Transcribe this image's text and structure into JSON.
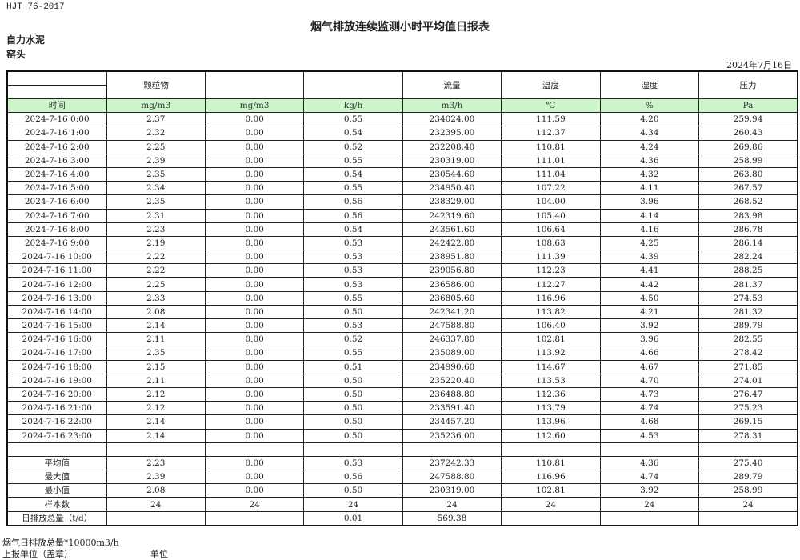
{
  "header": {
    "standard": "HJT  76-2017",
    "title": "烟气排放连续监测小时平均值日报表",
    "company": "自力水泥",
    "location": "窑头",
    "date": "2024年7月16日"
  },
  "table": {
    "group_headers": [
      "",
      "颗粒物",
      "",
      "",
      "流量",
      "温度",
      "湿度",
      "压力"
    ],
    "units": [
      "时间",
      "mg/m3",
      "mg/m3",
      "kg/h",
      "m3/h",
      "℃",
      "%",
      "Pa"
    ],
    "rows": [
      [
        "2024-7-16 0:00",
        "2.37",
        "0.00",
        "0.55",
        "234024.00",
        "111.59",
        "4.20",
        "259.94"
      ],
      [
        "2024-7-16 1:00",
        "2.32",
        "0.00",
        "0.54",
        "232395.00",
        "112.37",
        "4.34",
        "260.43"
      ],
      [
        "2024-7-16 2:00",
        "2.25",
        "0.00",
        "0.52",
        "232208.40",
        "110.81",
        "4.24",
        "269.86"
      ],
      [
        "2024-7-16 3:00",
        "2.39",
        "0.00",
        "0.55",
        "230319.00",
        "111.01",
        "4.36",
        "258.99"
      ],
      [
        "2024-7-16 4:00",
        "2.35",
        "0.00",
        "0.54",
        "230544.60",
        "111.04",
        "4.32",
        "263.80"
      ],
      [
        "2024-7-16 5:00",
        "2.34",
        "0.00",
        "0.55",
        "234950.40",
        "107.22",
        "4.11",
        "267.57"
      ],
      [
        "2024-7-16 6:00",
        "2.35",
        "0.00",
        "0.56",
        "238329.00",
        "104.00",
        "3.96",
        "268.52"
      ],
      [
        "2024-7-16 7:00",
        "2.31",
        "0.00",
        "0.56",
        "242319.60",
        "105.40",
        "4.14",
        "283.98"
      ],
      [
        "2024-7-16 8:00",
        "2.23",
        "0.00",
        "0.54",
        "243561.60",
        "106.64",
        "4.16",
        "286.78"
      ],
      [
        "2024-7-16 9:00",
        "2.19",
        "0.00",
        "0.53",
        "242422.80",
        "108.63",
        "4.25",
        "286.14"
      ],
      [
        "2024-7-16 10:00",
        "2.22",
        "0.00",
        "0.53",
        "238951.80",
        "111.39",
        "4.39",
        "282.24"
      ],
      [
        "2024-7-16 11:00",
        "2.22",
        "0.00",
        "0.53",
        "239056.80",
        "112.23",
        "4.41",
        "288.25"
      ],
      [
        "2024-7-16 12:00",
        "2.25",
        "0.00",
        "0.53",
        "236586.00",
        "112.27",
        "4.42",
        "281.37"
      ],
      [
        "2024-7-16 13:00",
        "2.33",
        "0.00",
        "0.55",
        "236805.60",
        "116.96",
        "4.50",
        "274.53"
      ],
      [
        "2024-7-16 14:00",
        "2.08",
        "0.00",
        "0.50",
        "242341.20",
        "113.82",
        "4.21",
        "281.32"
      ],
      [
        "2024-7-16 15:00",
        "2.14",
        "0.00",
        "0.53",
        "247588.80",
        "106.40",
        "3.92",
        "289.79"
      ],
      [
        "2024-7-16 16:00",
        "2.11",
        "0.00",
        "0.52",
        "246337.80",
        "102.81",
        "3.96",
        "282.55"
      ],
      [
        "2024-7-16 17:00",
        "2.35",
        "0.00",
        "0.55",
        "235089.00",
        "113.92",
        "4.66",
        "278.42"
      ],
      [
        "2024-7-16 18:00",
        "2.15",
        "0.00",
        "0.51",
        "234990.60",
        "114.67",
        "4.67",
        "271.85"
      ],
      [
        "2024-7-16 19:00",
        "2.11",
        "0.00",
        "0.50",
        "235220.40",
        "113.53",
        "4.70",
        "274.01"
      ],
      [
        "2024-7-16 20:00",
        "2.12",
        "0.00",
        "0.50",
        "236488.80",
        "112.36",
        "4.73",
        "276.47"
      ],
      [
        "2024-7-16 21:00",
        "2.12",
        "0.00",
        "0.50",
        "233591.40",
        "113.79",
        "4.74",
        "275.23"
      ],
      [
        "2024-7-16 22:00",
        "2.14",
        "0.00",
        "0.50",
        "234457.20",
        "113.96",
        "4.68",
        "269.15"
      ],
      [
        "2024-7-16 23:00",
        "2.14",
        "0.00",
        "0.50",
        "235236.00",
        "112.60",
        "4.53",
        "278.31"
      ]
    ],
    "summary": [
      [
        "平均值",
        "2.23",
        "0.00",
        "0.53",
        "237242.33",
        "110.81",
        "4.36",
        "275.40"
      ],
      [
        "最大值",
        "2.39",
        "0.00",
        "0.56",
        "247588.80",
        "116.96",
        "4.74",
        "289.79"
      ],
      [
        "最小值",
        "2.08",
        "0.00",
        "0.50",
        "230319.00",
        "102.81",
        "3.92",
        "258.99"
      ],
      [
        "样本数",
        "24",
        "24",
        "24",
        "24",
        "24",
        "24",
        "24"
      ],
      [
        "日排放总量（t/d）",
        "",
        "",
        "0.01",
        "569.38",
        "",
        "",
        ""
      ]
    ]
  },
  "footer": {
    "note_total": "烟气日排放总量*10000m3/h",
    "reporting_unit_label": "上报单位（盖章）",
    "unit_label": "单位"
  }
}
